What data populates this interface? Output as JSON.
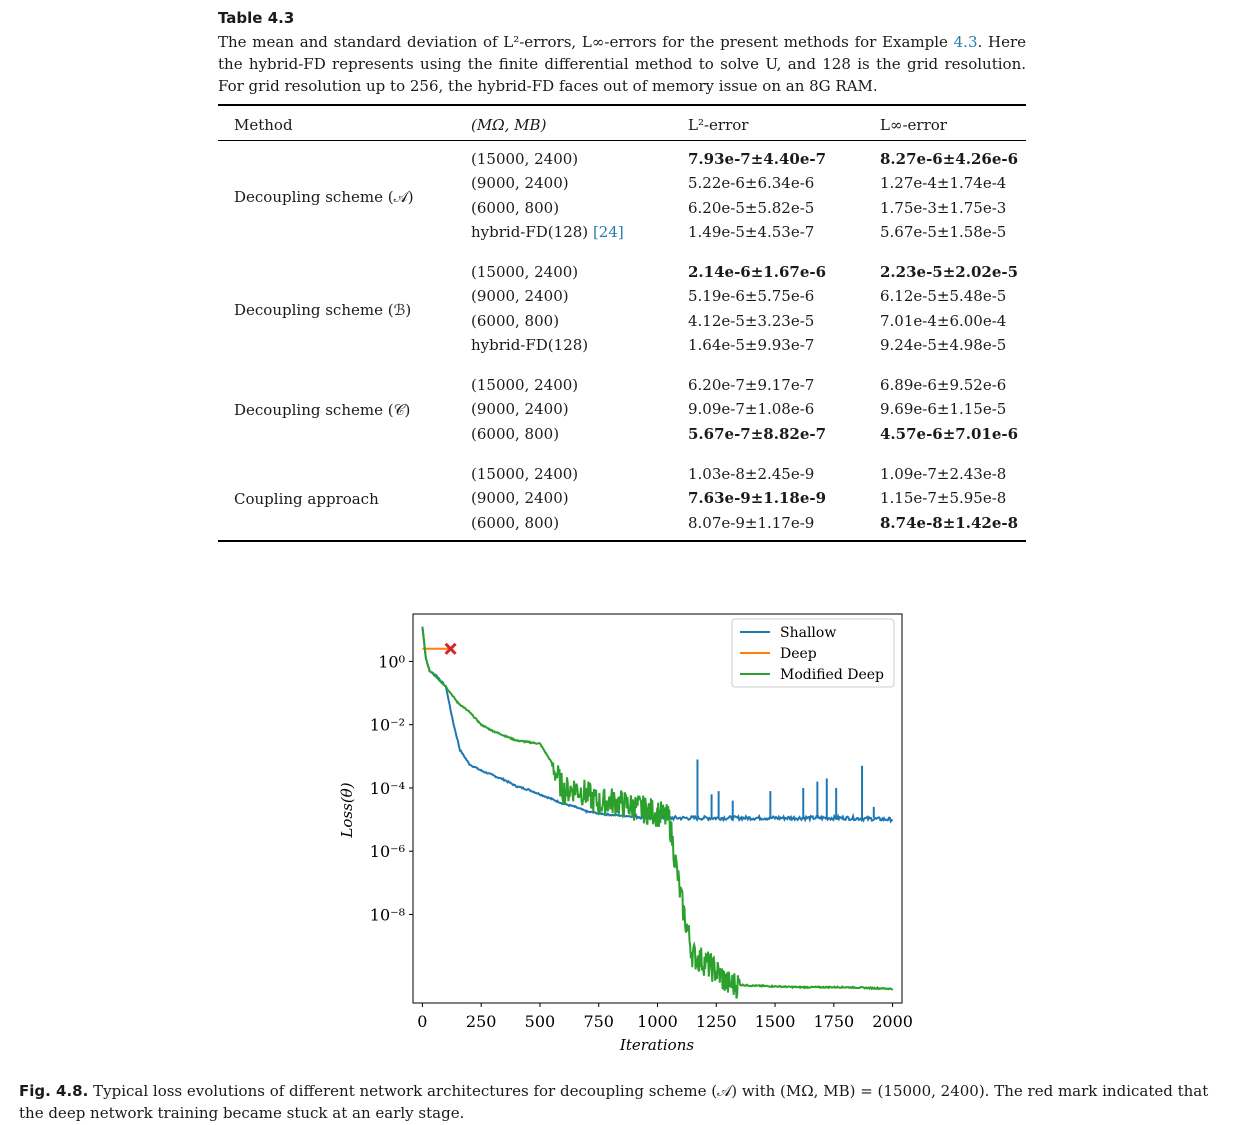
{
  "table": {
    "label": "Table 4.3",
    "caption_pre": "The mean and standard deviation of L²-errors, L∞-errors for the present methods for Example ",
    "caption_ref": "4.3",
    "caption_post": ". Here the hybrid-FD represents using the finite differential method to solve U, and 128 is the grid resolution. For grid resolution up to 256, the hybrid-FD faces out of memory issue on an 8G RAM.",
    "headers": [
      "Method",
      "(MΩ, MB)",
      "L²-error",
      "L∞-error"
    ],
    "groups": [
      {
        "method": "Decoupling scheme (𝒜)",
        "rows": [
          {
            "config": "(15000, 2400)",
            "l2": "7.93e-7±4.40e-7",
            "linf": "8.27e-6±4.26e-6",
            "bold": true
          },
          {
            "config": "(9000, 2400)",
            "l2": "5.22e-6±6.34e-6",
            "linf": "1.27e-4±1.74e-4",
            "bold": false
          },
          {
            "config": "(6000, 800)",
            "l2": "6.20e-5±5.82e-5",
            "linf": "1.75e-3±1.75e-3",
            "bold": false
          },
          {
            "config": "hybrid-FD(128)",
            "ref": "[24]",
            "l2": "1.49e-5±4.53e-7",
            "linf": "5.67e-5±1.58e-5",
            "bold": false
          }
        ]
      },
      {
        "method": "Decoupling scheme (ℬ)",
        "rows": [
          {
            "config": "(15000, 2400)",
            "l2": "2.14e-6±1.67e-6",
            "linf": "2.23e-5±2.02e-5",
            "bold": true
          },
          {
            "config": "(9000, 2400)",
            "l2": "5.19e-6±5.75e-6",
            "linf": "6.12e-5±5.48e-5",
            "bold": false
          },
          {
            "config": "(6000, 800)",
            "l2": "4.12e-5±3.23e-5",
            "linf": "7.01e-4±6.00e-4",
            "bold": false
          },
          {
            "config": "hybrid-FD(128)",
            "l2": "1.64e-5±9.93e-7",
            "linf": "9.24e-5±4.98e-5",
            "bold": false
          }
        ]
      },
      {
        "method": "Decoupling scheme (𝒞)",
        "rows": [
          {
            "config": "(15000, 2400)",
            "l2": "6.20e-7±9.17e-7",
            "linf": "6.89e-6±9.52e-6",
            "bold": false
          },
          {
            "config": "(9000, 2400)",
            "l2": "9.09e-7±1.08e-6",
            "linf": "9.69e-6±1.15e-5",
            "bold": false
          },
          {
            "config": "(6000, 800)",
            "l2": "5.67e-7±8.82e-7",
            "linf": "4.57e-6±7.01e-6",
            "bold": true
          }
        ]
      },
      {
        "method": "Coupling approach",
        "rows": [
          {
            "config": "(15000, 2400)",
            "l2": "1.03e-8±2.45e-9",
            "linf": "1.09e-7±2.43e-8",
            "bold_l2": false,
            "bold_linf": false
          },
          {
            "config": "(9000, 2400)",
            "l2": "7.63e-9±1.18e-9",
            "linf": "1.15e-7±5.95e-8",
            "bold_l2": true,
            "bold_linf": false
          },
          {
            "config": "(6000, 800)",
            "l2": "8.07e-9±1.17e-9",
            "linf": "8.74e-8±1.42e-8",
            "bold_l2": false,
            "bold_linf": true
          }
        ]
      }
    ]
  },
  "figure": {
    "label": "Fig. 4.8.",
    "caption": "Typical loss evolutions of different network architectures for decoupling scheme (𝒜) with (MΩ, MB) = (15000, 2400). The red mark indicated that the deep network training became stuck at an early stage."
  },
  "chart_data": {
    "type": "line",
    "xlabel": "Iterations",
    "ylabel": "Loss(θ)",
    "yscale": "log",
    "xlim": [
      -40,
      2040
    ],
    "ylim_log10": [
      -10.8,
      1.5
    ],
    "xticks": [
      0,
      250,
      500,
      750,
      1000,
      1250,
      1500,
      1750,
      2000
    ],
    "xtick_labels": [
      "0",
      "250",
      "500",
      "750",
      "1000",
      "1250",
      "1500",
      "1750",
      "2000"
    ],
    "yticks_log10": [
      0,
      -2,
      -4,
      -6,
      -8
    ],
    "ytick_labels": [
      "10⁰",
      "10⁻²",
      "10⁻⁴",
      "10⁻⁶",
      "10⁻⁸"
    ],
    "legend_position": "top-right",
    "series": [
      {
        "name": "Shallow",
        "color": "#1f77b4",
        "x": [
          0,
          15,
          30,
          60,
          100,
          130,
          160,
          200,
          250,
          300,
          350,
          400,
          450,
          500,
          550,
          600,
          650,
          700,
          800,
          900,
          1000,
          1200,
          1400,
          1600,
          1800,
          2000
        ],
        "log10_y": [
          1.1,
          0.1,
          -0.3,
          -0.45,
          -0.8,
          -1.9,
          -2.8,
          -3.25,
          -3.45,
          -3.6,
          -3.75,
          -3.95,
          -4.05,
          -4.2,
          -4.35,
          -4.5,
          -4.6,
          -4.75,
          -4.85,
          -4.9,
          -4.95,
          -4.95,
          -4.95,
          -4.95,
          -4.95,
          -5.0
        ],
        "spikes": [
          [
            1170,
            -3.1
          ],
          [
            1230,
            -4.2
          ],
          [
            1260,
            -4.1
          ],
          [
            1320,
            -4.4
          ],
          [
            1480,
            -4.1
          ],
          [
            1620,
            -4.0
          ],
          [
            1680,
            -3.8
          ],
          [
            1720,
            -3.7
          ],
          [
            1760,
            -4.0
          ],
          [
            1870,
            -3.3
          ],
          [
            1920,
            -4.6
          ]
        ]
      },
      {
        "name": "Deep",
        "color": "#ff7f0e",
        "x": [
          0,
          120
        ],
        "log10_y": [
          0.4,
          0.4
        ]
      },
      {
        "name": "Modified Deep",
        "color": "#2ca02c",
        "x": [
          0,
          15,
          30,
          60,
          100,
          150,
          200,
          250,
          300,
          350,
          400,
          450,
          500,
          550,
          600,
          650,
          700,
          750,
          800,
          900,
          1000,
          1050,
          1100,
          1150,
          1200,
          1250,
          1300,
          1400,
          1600,
          1800,
          2000
        ],
        "log10_y": [
          1.1,
          0.1,
          -0.3,
          -0.5,
          -0.8,
          -1.3,
          -1.6,
          -2.0,
          -2.2,
          -2.35,
          -2.5,
          -2.55,
          -2.6,
          -3.2,
          -4.1,
          -4.0,
          -4.2,
          -4.5,
          -4.4,
          -4.6,
          -4.8,
          -5.0,
          -7.5,
          -9.3,
          -9.5,
          -9.8,
          -10.2,
          -10.25,
          -10.3,
          -10.3,
          -10.35
        ]
      }
    ],
    "stuck_marker": {
      "x": 120,
      "log10_y": 0.4,
      "color": "#d62728"
    }
  }
}
